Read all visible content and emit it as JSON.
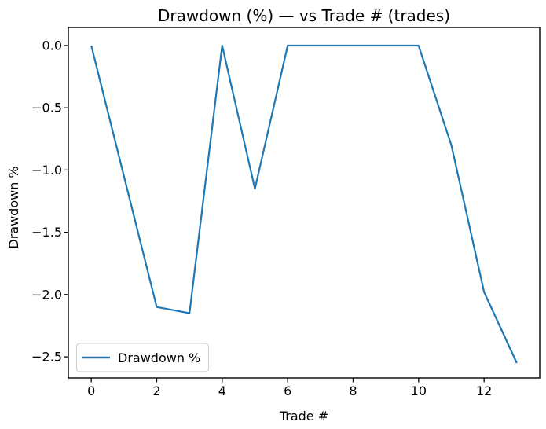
{
  "chart_data": {
    "type": "line",
    "title": "Drawdown (%) — vs Trade # (trades)",
    "xlabel": "Trade #",
    "ylabel": "Drawdown %",
    "x": [
      0,
      1,
      2,
      3,
      4,
      5,
      6,
      7,
      8,
      9,
      10,
      11,
      12,
      13
    ],
    "series": [
      {
        "name": "Drawdown %",
        "values": [
          0.0,
          -1.05,
          -2.1,
          -2.15,
          0.0,
          -1.15,
          0.0,
          0.0,
          0.0,
          0.0,
          0.0,
          -0.8,
          -1.98,
          -2.55
        ],
        "color": "#1f77b4"
      }
    ],
    "xticks": [
      0,
      2,
      4,
      6,
      8,
      10,
      12
    ],
    "xtick_labels": [
      "0",
      "2",
      "4",
      "6",
      "8",
      "10",
      "12"
    ],
    "yticks": [
      0.0,
      -0.5,
      -1.0,
      -1.5,
      -2.0,
      -2.5
    ],
    "ytick_labels": [
      "0.0",
      "−0.5",
      "−1.0",
      "−1.5",
      "−2.0",
      "−2.5"
    ],
    "xlim": [
      -0.7,
      13.7
    ],
    "ylim": [
      -2.67,
      0.145
    ],
    "grid": false,
    "legend": {
      "position": "lower left",
      "entries": [
        {
          "label": "Drawdown %",
          "color": "#1f77b4"
        }
      ]
    },
    "colors": {
      "line": "#1f77b4",
      "spine": "#000000",
      "legend_border": "#cccccc",
      "background": "#ffffff"
    }
  }
}
